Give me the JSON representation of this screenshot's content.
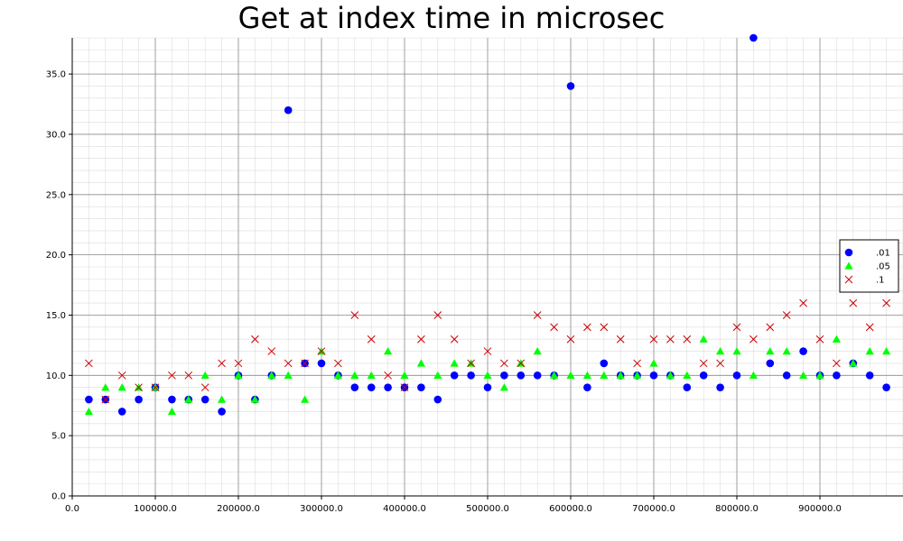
{
  "chart_data": {
    "type": "scatter",
    "title": "Get at index time in microsec",
    "xlabel": "",
    "ylabel": "",
    "xlim": [
      0,
      1000000
    ],
    "ylim": [
      0,
      38
    ],
    "x_ticks": [
      0,
      100000,
      200000,
      300000,
      400000,
      500000,
      600000,
      700000,
      800000,
      900000
    ],
    "x_tick_labels": [
      "0.0",
      "100000.0",
      "200000.0",
      "300000.0",
      "400000.0",
      "500000.0",
      "600000.0",
      "700000.0",
      "800000.0",
      "900000.0"
    ],
    "y_ticks": [
      0,
      5,
      10,
      15,
      20,
      25,
      30,
      35
    ],
    "y_tick_labels": [
      "0.0",
      "5.0",
      "10.0",
      "15.0",
      "20.0",
      "25.0",
      "30.0",
      "35.0"
    ],
    "grid": true,
    "legend_position": "right",
    "x": [
      20000,
      40000,
      60000,
      80000,
      100000,
      120000,
      140000,
      160000,
      180000,
      200000,
      220000,
      240000,
      260000,
      280000,
      300000,
      320000,
      340000,
      360000,
      380000,
      400000,
      420000,
      440000,
      460000,
      480000,
      500000,
      520000,
      540000,
      560000,
      580000,
      600000,
      620000,
      640000,
      660000,
      680000,
      700000,
      720000,
      740000,
      760000,
      780000,
      800000,
      820000,
      840000,
      860000,
      880000,
      900000,
      920000,
      940000,
      960000,
      980000
    ],
    "series": [
      {
        "name": ".01",
        "marker": "circle",
        "color": "#0000ff",
        "values": [
          8,
          8,
          7,
          8,
          9,
          8,
          8,
          8,
          7,
          10,
          8,
          10,
          32,
          11,
          11,
          10,
          9,
          9,
          9,
          9,
          9,
          8,
          10,
          10,
          9,
          10,
          10,
          10,
          10,
          34,
          9,
          11,
          10,
          10,
          10,
          10,
          9,
          10,
          9,
          10,
          38,
          11,
          10,
          12,
          10,
          10,
          11,
          10,
          9
        ]
      },
      {
        "name": ".05",
        "marker": "triangle",
        "color": "#00ff00",
        "values": [
          7,
          9,
          9,
          9,
          9,
          7,
          8,
          10,
          8,
          10,
          8,
          10,
          10,
          8,
          12,
          10,
          10,
          10,
          12,
          10,
          11,
          10,
          11,
          11,
          10,
          9,
          11,
          12,
          10,
          10,
          10,
          10,
          10,
          10,
          11,
          10,
          10,
          13,
          12,
          12,
          10,
          12,
          12,
          10,
          10,
          13,
          11,
          12,
          12
        ]
      },
      {
        "name": ".1",
        "marker": "x",
        "color": "#cc0000",
        "values": [
          11,
          8,
          10,
          9,
          9,
          10,
          10,
          9,
          11,
          11,
          13,
          12,
          11,
          11,
          12,
          11,
          15,
          13,
          10,
          9,
          13,
          15,
          13,
          11,
          12,
          11,
          11,
          15,
          14,
          13,
          14,
          14,
          13,
          11,
          13,
          13,
          13,
          11,
          11,
          14,
          13,
          14,
          15,
          16,
          13,
          11,
          16,
          14,
          16
        ]
      }
    ]
  }
}
